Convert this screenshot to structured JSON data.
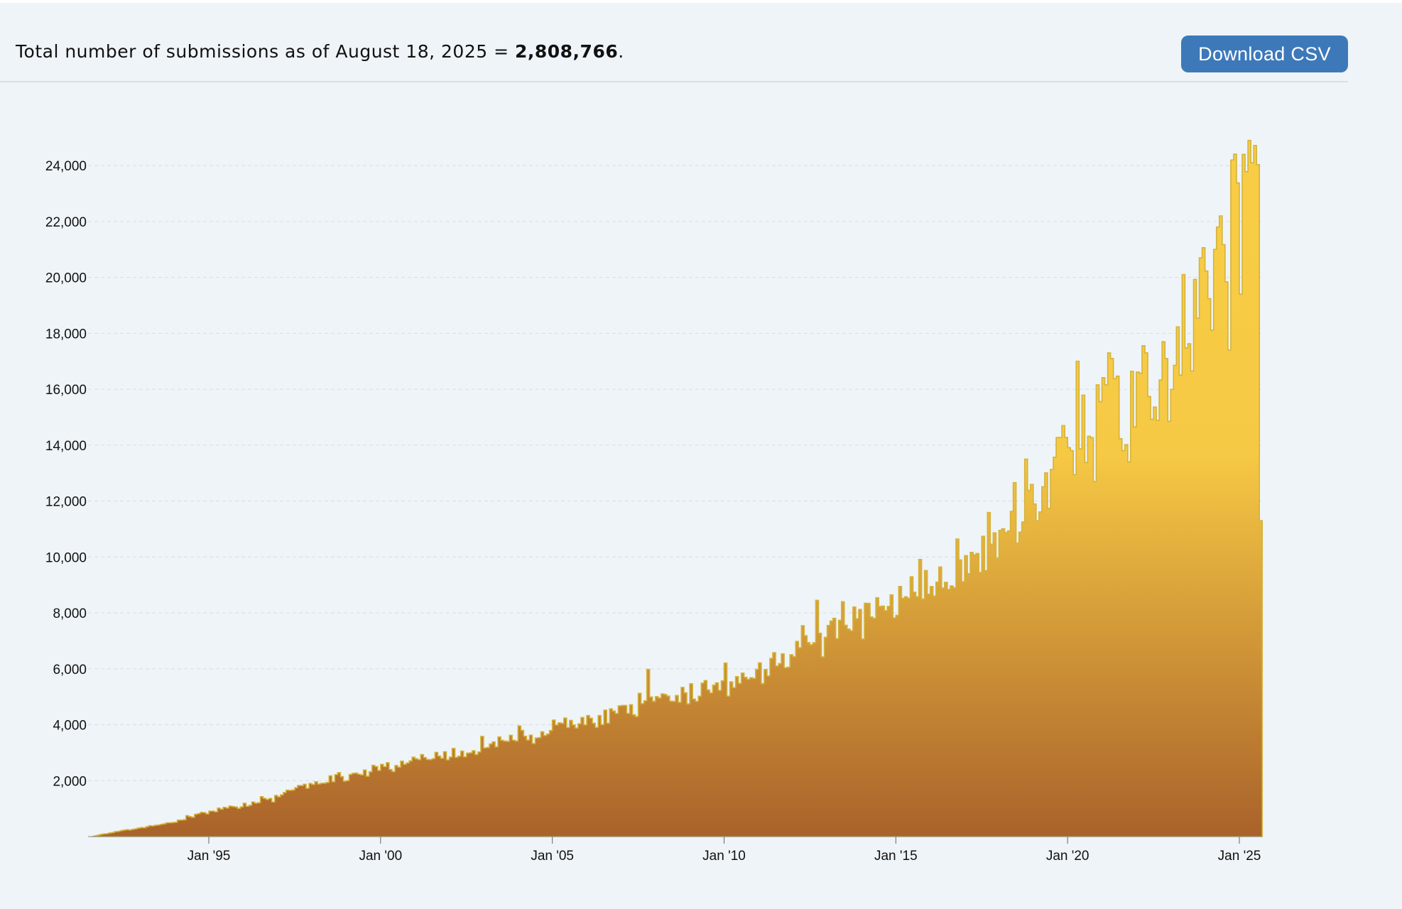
{
  "header": {
    "summary_prefix": "Total number of submissions as of August 18, 2025 = ",
    "summary_total": "2,808,766",
    "summary_suffix": ".",
    "download_label": "Download CSV"
  },
  "colors": {
    "background": "#eff4f8",
    "button": "#3d79b9",
    "area_top": "#f8cd45",
    "area_bottom": "#a9622a",
    "outline": "#d4b33a",
    "grid": "#d8dde2"
  },
  "chart_data": {
    "type": "area",
    "x_unit": "month",
    "x_range": [
      "1991-08",
      "2025-08"
    ],
    "ylim": [
      0,
      25000
    ],
    "y_ticks": [
      2000,
      4000,
      6000,
      8000,
      10000,
      12000,
      14000,
      16000,
      18000,
      20000,
      22000,
      24000
    ],
    "y_tick_labels": [
      "2,000",
      "4,000",
      "6,000",
      "8,000",
      "10,000",
      "12,000",
      "14,000",
      "16,000",
      "18,000",
      "20,000",
      "22,000",
      "24,000"
    ],
    "x_ticks": [
      "1995-01",
      "2000-01",
      "2005-01",
      "2010-01",
      "2015-01",
      "2020-01",
      "2025-01"
    ],
    "x_tick_labels": [
      "Jan '95",
      "Jan '00",
      "Jan '05",
      "Jan '10",
      "Jan '15",
      "Jan '20",
      "Jan '25"
    ],
    "grid": "horizontal dashed",
    "legend": "none",
    "series": [
      {
        "anchors": [
          [
            "1991-08",
            0
          ],
          [
            "1991-12",
            100
          ],
          [
            "1992-12",
            300
          ],
          [
            "1993-12",
            500
          ],
          [
            "1994-12",
            900
          ],
          [
            "1995-12",
            1100
          ],
          [
            "1996-12",
            1400
          ],
          [
            "1997-12",
            1900
          ],
          [
            "1998-12",
            2200
          ],
          [
            "1999-12",
            2500
          ],
          [
            "2000-12",
            2700
          ],
          [
            "2001-12",
            2900
          ],
          [
            "2002-12",
            3200
          ],
          [
            "2003-12",
            3500
          ],
          [
            "2004-12",
            3900
          ],
          [
            "2005-12",
            4100
          ],
          [
            "2006-12",
            4400
          ],
          [
            "2007-12",
            4700
          ],
          [
            "2008-12",
            5100
          ],
          [
            "2009-12",
            5500
          ],
          [
            "2010-12",
            6000
          ],
          [
            "2011-12",
            6500
          ],
          [
            "2012-12",
            7200
          ],
          [
            "2013-12",
            7800
          ],
          [
            "2014-12",
            8400
          ],
          [
            "2015-12",
            9000
          ],
          [
            "2016-12",
            9600
          ],
          [
            "2017-12",
            10600
          ],
          [
            "2018-12",
            12000
          ],
          [
            "2019-12",
            13800
          ],
          [
            "2020-12",
            15200
          ],
          [
            "2021-12",
            15400
          ],
          [
            "2022-12",
            16500
          ],
          [
            "2023-12",
            19500
          ],
          [
            "2024-12",
            22000
          ],
          [
            "2025-06",
            24000
          ],
          [
            "2025-07",
            23800
          ],
          [
            "2025-08",
            11300
          ]
        ],
        "highlights": [
          [
            "2007-10",
            5980
          ],
          [
            "2012-09",
            8450
          ],
          [
            "2018-10",
            13500
          ],
          [
            "2019-11",
            14700
          ],
          [
            "2020-04",
            17000
          ],
          [
            "2021-03",
            17300
          ],
          [
            "2022-04",
            17300
          ],
          [
            "2023-05",
            20100
          ],
          [
            "2023-11",
            20700
          ],
          [
            "2024-04",
            21000
          ],
          [
            "2024-05",
            21800
          ],
          [
            "2024-10",
            24200
          ],
          [
            "2025-02",
            24400
          ],
          [
            "2025-04",
            24900
          ],
          [
            "2025-05",
            24100
          ],
          [
            "2020-10",
            12700
          ],
          [
            "2021-10",
            13400
          ],
          [
            "2024-09",
            17400
          ],
          [
            "2025-01",
            19400
          ]
        ]
      }
    ]
  }
}
